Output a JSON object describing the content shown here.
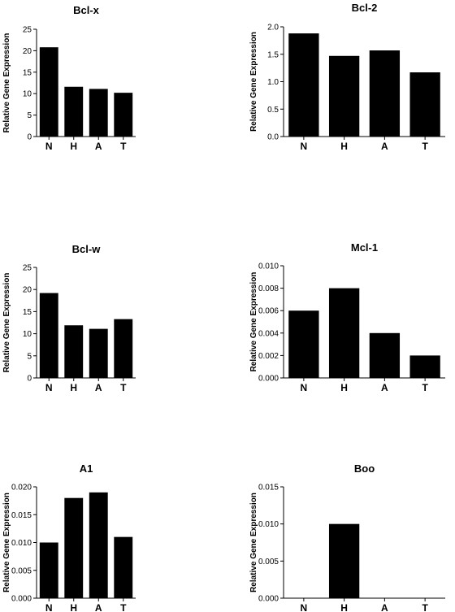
{
  "chart_data": [
    {
      "type": "bar",
      "title": "Bcl-x",
      "ylabel": "Relative Gene Expression",
      "categories": [
        "N",
        "H",
        "A",
        "T"
      ],
      "values": [
        20.8,
        11.6,
        11.1,
        10.2
      ],
      "ylim": [
        0,
        25
      ],
      "yticks": [
        0,
        5,
        10,
        15,
        20,
        25
      ],
      "ytick_labels": [
        "0",
        "5",
        "10",
        "15",
        "20",
        "25"
      ],
      "bar_color": "#000000",
      "grid": false
    },
    {
      "type": "bar",
      "title": "Bcl-2",
      "ylabel": "Relative Gene Expression",
      "categories": [
        "N",
        "H",
        "A",
        "T"
      ],
      "values": [
        1.88,
        1.47,
        1.57,
        1.17
      ],
      "ylim": [
        0,
        2.0
      ],
      "yticks": [
        0,
        0.5,
        1.0,
        1.5,
        2.0
      ],
      "ytick_labels": [
        "0.0",
        "0.5",
        "1.0",
        "1.5",
        "2.0"
      ],
      "bar_color": "#000000",
      "grid": false
    },
    {
      "type": "bar",
      "title": "Bcl-w",
      "ylabel": "Relative Gene Expression",
      "categories": [
        "N",
        "H",
        "A",
        "T"
      ],
      "values": [
        19.2,
        11.9,
        11.1,
        13.3
      ],
      "ylim": [
        0,
        25
      ],
      "yticks": [
        0,
        5,
        10,
        15,
        20,
        25
      ],
      "ytick_labels": [
        "0",
        "5",
        "10",
        "15",
        "20",
        "25"
      ],
      "bar_color": "#000000",
      "grid": false
    },
    {
      "type": "bar",
      "title": "Mcl-1",
      "ylabel": "Relative Gene Expression",
      "categories": [
        "N",
        "H",
        "A",
        "T"
      ],
      "values": [
        0.006,
        0.008,
        0.004,
        0.002
      ],
      "ylim": [
        0,
        0.01
      ],
      "yticks": [
        0,
        0.002,
        0.004,
        0.006,
        0.008,
        0.01
      ],
      "ytick_labels": [
        "0.000",
        "0.002",
        "0.004",
        "0.006",
        "0.008",
        "0.010"
      ],
      "bar_color": "#000000",
      "grid": false
    },
    {
      "type": "bar",
      "title": "A1",
      "ylabel": "Relative Gene Expression",
      "categories": [
        "N",
        "H",
        "A",
        "T"
      ],
      "values": [
        0.01,
        0.018,
        0.019,
        0.011
      ],
      "ylim": [
        0,
        0.02
      ],
      "yticks": [
        0,
        0.005,
        0.01,
        0.015,
        0.02
      ],
      "ytick_labels": [
        "0.000",
        "0.005",
        "0.010",
        "0.015",
        "0.020"
      ],
      "bar_color": "#000000",
      "grid": false
    },
    {
      "type": "bar",
      "title": "Boo",
      "ylabel": "Relative Gene Expression",
      "categories": [
        "N",
        "H",
        "A",
        "T"
      ],
      "values": [
        0,
        0.01,
        0,
        0
      ],
      "ylim": [
        0,
        0.015
      ],
      "yticks": [
        0,
        0.005,
        0.01,
        0.015
      ],
      "ytick_labels": [
        "0.000",
        "0.005",
        "0.010",
        "0.015"
      ],
      "bar_color": "#000000",
      "grid": false
    }
  ]
}
